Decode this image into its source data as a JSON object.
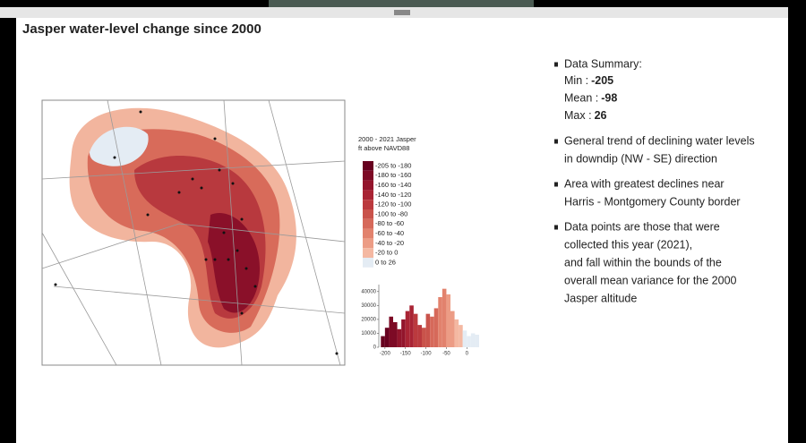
{
  "title": "Jasper water-level change since 2000",
  "legend": {
    "title": [
      "2000 - 2021 Jasper",
      "ft above NAVD88"
    ],
    "items": [
      {
        "label": "-205 to -180",
        "color": "#67001f"
      },
      {
        "label": "-180 to -160",
        "color": "#7d0a25"
      },
      {
        "label": "-160 to -140",
        "color": "#93152c"
      },
      {
        "label": "-140 to -120",
        "color": "#a92434"
      },
      {
        "label": "-120 to -100",
        "color": "#bb3a3e"
      },
      {
        "label": "-100 to -80",
        "color": "#c9534b"
      },
      {
        "label": "-80 to -60",
        "color": "#d6695a"
      },
      {
        "label": "-60 to -40",
        "color": "#e2826d"
      },
      {
        "label": "-40 to -20",
        "color": "#ec9c85"
      },
      {
        "label": "-20 to 0",
        "color": "#f4b8a2"
      },
      {
        "label": "0 to 26",
        "color": "#e4ecf4"
      }
    ]
  },
  "histogram": {
    "bins": [
      -210,
      -200,
      -190,
      -180,
      -170,
      -160,
      -150,
      -140,
      -130,
      -120,
      -110,
      -100,
      -90,
      -80,
      -70,
      -60,
      -50,
      -40,
      -30,
      -20,
      -10,
      0,
      10,
      20,
      30
    ],
    "counts": [
      8000,
      14000,
      22000,
      18000,
      13000,
      20000,
      26000,
      30000,
      24000,
      16000,
      14000,
      24000,
      22000,
      28000,
      36000,
      42000,
      38000,
      26000,
      20000,
      16000,
      12000,
      8000,
      10000,
      9000
    ],
    "colors": [
      "#67001f",
      "#67001f",
      "#7d0a25",
      "#7d0a25",
      "#93152c",
      "#93152c",
      "#a92434",
      "#a92434",
      "#bb3a3e",
      "#bb3a3e",
      "#c9534b",
      "#c9534b",
      "#d6695a",
      "#d6695a",
      "#e2826d",
      "#e2826d",
      "#ec9c85",
      "#ec9c85",
      "#f4b8a2",
      "#f4b8a2",
      "#e4ecf4",
      "#e4ecf4",
      "#e4ecf4",
      "#e4ecf4"
    ],
    "xlim": [
      -215,
      30
    ],
    "ylim": [
      0,
      45000
    ],
    "xticks": [
      -200,
      -150,
      -100,
      -50,
      0
    ],
    "yticks": [
      0,
      10000,
      20000,
      30000,
      40000
    ]
  },
  "summary": {
    "heading": "Data Summary:",
    "stats": [
      {
        "label": "Min :",
        "value": -205
      },
      {
        "label": "Mean :",
        "value": -98
      },
      {
        "label": "Max :",
        "value": 26
      }
    ]
  },
  "bullets": [
    [
      "General trend of declining water levels",
      "in downdip (NW - SE) direction"
    ],
    [
      "Area with greatest declines near",
      "Harris - Montgomery County border"
    ],
    [
      "Data points are those that were",
      "collected this year (2021),",
      "and fall within the bounds of the",
      "overall mean variance for the 2000",
      "Jasper altitude"
    ]
  ]
}
